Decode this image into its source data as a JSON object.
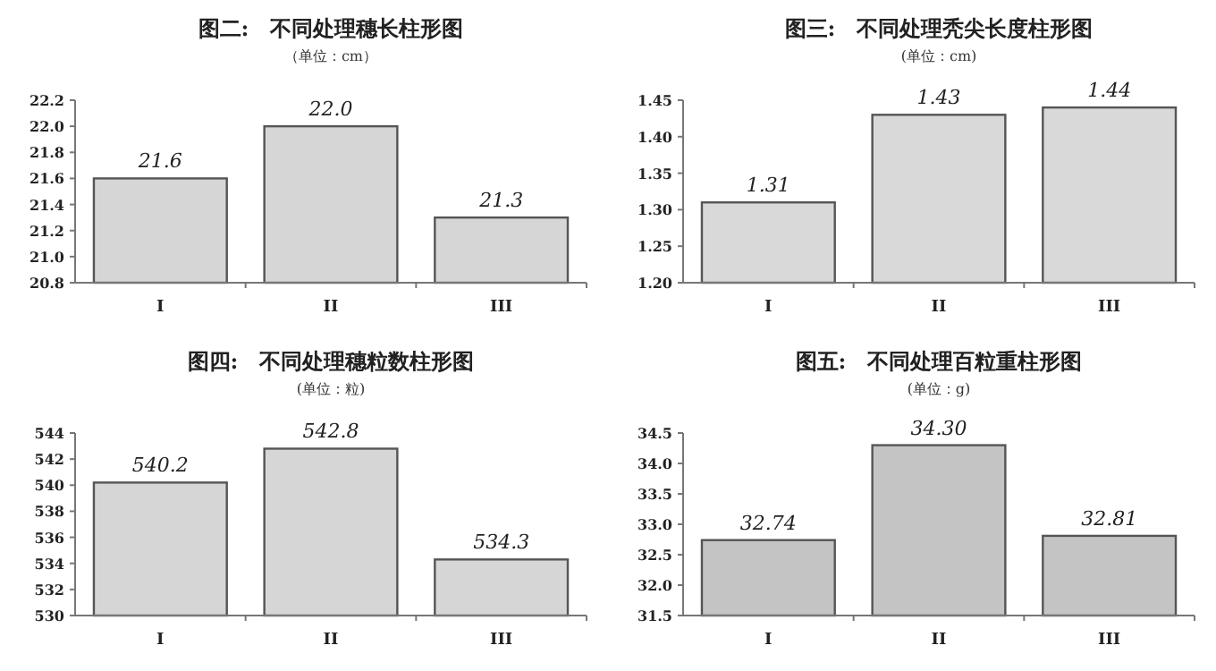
{
  "chart_data": [
    {
      "type": "bar",
      "title": "图二:　不同处理穗长柱形图",
      "subtitle": "（单位：cm）",
      "categories": [
        "I",
        "II",
        "III"
      ],
      "values": [
        21.6,
        22.0,
        21.3
      ],
      "value_labels": [
        "21.6",
        "22.0",
        "21.3"
      ],
      "color": "#d6d6d6",
      "ylim": [
        20.8,
        22.2
      ],
      "yticks": [
        {
          "value": 20.8,
          "label": "20.8"
        },
        {
          "value": 21,
          "label": "21.0"
        },
        {
          "value": 21.2,
          "label": "21.2"
        },
        {
          "value": 21.4,
          "label": "21.4"
        },
        {
          "value": 21.6,
          "label": "21.6"
        },
        {
          "value": 21.8,
          "label": "21.8"
        },
        {
          "value": 22,
          "label": "22.0"
        },
        {
          "value": 22.2,
          "label": "22.2"
        }
      ]
    },
    {
      "type": "bar",
      "title": "图三:　不同处理秃尖长度柱形图",
      "subtitle": "(单位：cm)",
      "categories": [
        "I",
        "II",
        "III"
      ],
      "values": [
        1.31,
        1.43,
        1.44
      ],
      "value_labels": [
        "1.31",
        "1.43",
        "1.44"
      ],
      "color": "#d9d9d9",
      "ylim": [
        1.2,
        1.45
      ],
      "yticks": [
        {
          "value": 1.2,
          "label": "1.20"
        },
        {
          "value": 1.25,
          "label": "1.25"
        },
        {
          "value": 1.3,
          "label": "1.30"
        },
        {
          "value": 1.35,
          "label": "1.35"
        },
        {
          "value": 1.4,
          "label": "1.40"
        },
        {
          "value": 1.45,
          "label": "1.45"
        }
      ]
    },
    {
      "type": "bar",
      "title": "图四:　不同处理穗粒数柱形图",
      "subtitle": "(单位：粒)",
      "categories": [
        "I",
        "II",
        "III"
      ],
      "values": [
        540.2,
        542.8,
        534.3
      ],
      "value_labels": [
        "540.2",
        "542.8",
        "534.3"
      ],
      "color": "#d6d6d6",
      "ylim": [
        530,
        544
      ],
      "yticks": [
        530,
        532,
        534,
        536,
        538,
        540,
        542,
        544
      ]
    },
    {
      "type": "bar",
      "title": "图五:　不同处理百粒重柱形图",
      "subtitle": "(单位：g)",
      "categories": [
        "I",
        "II",
        "III"
      ],
      "values": [
        32.74,
        34.3,
        32.81
      ],
      "value_labels": [
        "32.74",
        "34.30",
        "32.81"
      ],
      "color": "#c4c4c4",
      "ylim": [
        31.5,
        34.5
      ],
      "yticks": [
        {
          "value": 31.5,
          "label": "31.5"
        },
        {
          "value": 32,
          "label": "32.0"
        },
        {
          "value": 32.5,
          "label": "32.5"
        },
        {
          "value": 33,
          "label": "33.0"
        },
        {
          "value": 33.5,
          "label": "33.5"
        },
        {
          "value": 34,
          "label": "34.0"
        },
        {
          "value": 34.5,
          "label": "34.5"
        }
      ]
    }
  ]
}
